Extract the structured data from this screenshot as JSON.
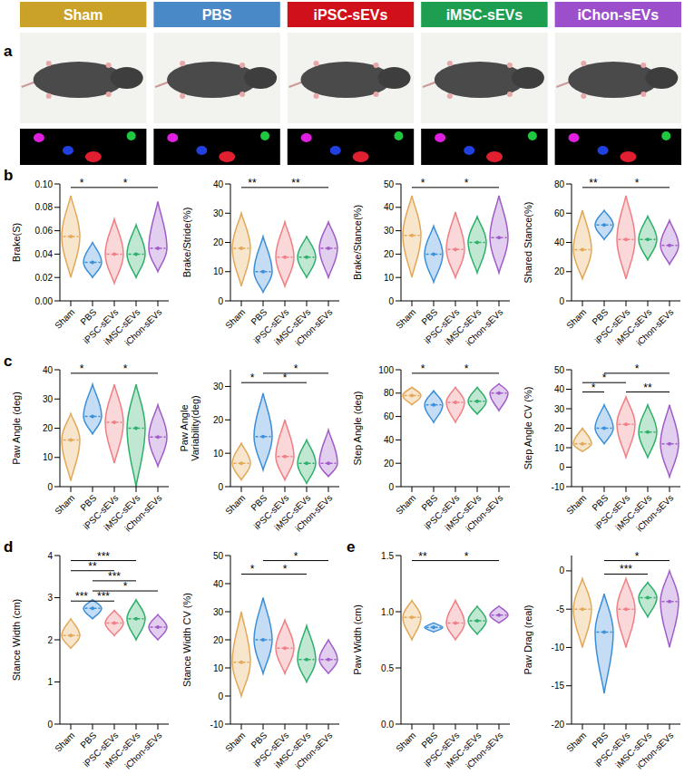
{
  "panel_labels": [
    "a",
    "b",
    "c",
    "d",
    "e"
  ],
  "panel_a": {
    "groups": [
      "Sham",
      "PBS",
      "iPSC-sEVs",
      "iMSC-sEVs",
      "iChon-sEVs"
    ],
    "colors": [
      "#C9A227",
      "#4A89C8",
      "#D0101A",
      "#1E9E50",
      "#9B4FCB"
    ]
  },
  "chart_data": [
    {
      "type": "violin",
      "y_label": "Brake(S)",
      "categories": [
        "Sham",
        "PBS",
        "iPSC-sEVs",
        "iMSC-sEVs",
        "iChon-sEVs"
      ],
      "colors": [
        "#E3A857",
        "#3B8FD9",
        "#F07F84",
        "#2EAF6B",
        "#A05CC8"
      ],
      "min": [
        0.02,
        0.02,
        0.015,
        0.02,
        0.025
      ],
      "median": [
        0.055,
        0.033,
        0.04,
        0.04,
        0.045
      ],
      "max": [
        0.09,
        0.05,
        0.07,
        0.065,
        0.085
      ],
      "ylim": [
        0,
        0.1
      ],
      "yticks": [
        {
          "value": 0,
          "label": "0.00"
        },
        0.02,
        0.04,
        0.06,
        0.08,
        {
          "value": 0.1,
          "label": "0.10"
        }
      ],
      "comparisons": [
        {
          "groups": [
            "Sham",
            "PBS"
          ],
          "label": "*"
        },
        {
          "groups": [
            "PBS",
            "iChon-sEVs"
          ],
          "label": "*"
        }
      ]
    },
    {
      "type": "violin",
      "y_label": "Brake/Stride(%)",
      "categories": [
        "Sham",
        "PBS",
        "iPSC-sEVs",
        "iMSC-sEVs",
        "iChon-sEVs"
      ],
      "colors": [
        "#E3A857",
        "#3B8FD9",
        "#F07F84",
        "#2EAF6B",
        "#A05CC8"
      ],
      "min": [
        5,
        3,
        5,
        8,
        8
      ],
      "median": [
        18,
        10,
        15,
        15,
        18
      ],
      "max": [
        30,
        22,
        27,
        22,
        27
      ],
      "ylim": [
        0,
        40
      ],
      "yticks": [
        0,
        10,
        20,
        30,
        40
      ],
      "comparisons": [
        {
          "groups": [
            "Sham",
            "PBS"
          ],
          "label": "**"
        },
        {
          "groups": [
            "PBS",
            "iChon-sEVs"
          ],
          "label": "**"
        }
      ]
    },
    {
      "type": "violin",
      "y_label": "Brake/Stance(%)",
      "categories": [
        "Sham",
        "PBS",
        "iPSC-sEVs",
        "iMSC-sEVs",
        "iChon-sEVs"
      ],
      "colors": [
        "#E3A857",
        "#3B8FD9",
        "#F07F84",
        "#2EAF6B",
        "#A05CC8"
      ],
      "min": [
        10,
        8,
        10,
        12,
        12
      ],
      "median": [
        28,
        20,
        22,
        25,
        27
      ],
      "max": [
        45,
        32,
        38,
        36,
        45
      ],
      "ylim": [
        0,
        50
      ],
      "yticks": [
        0,
        10,
        20,
        30,
        40,
        50
      ],
      "comparisons": [
        {
          "groups": [
            "Sham",
            "PBS"
          ],
          "label": "*"
        },
        {
          "groups": [
            "PBS",
            "iChon-sEVs"
          ],
          "label": "*"
        }
      ]
    },
    {
      "type": "violin",
      "y_label": "Shared Stance(%)",
      "categories": [
        "Sham",
        "PBS",
        "iPSC-sEVs",
        "iMSC-sEVs",
        "iChon-sEVs"
      ],
      "colors": [
        "#E3A857",
        "#3B8FD9",
        "#F07F84",
        "#2EAF6B",
        "#A05CC8"
      ],
      "min": [
        15,
        42,
        15,
        28,
        25
      ],
      "median": [
        35,
        52,
        42,
        42,
        38
      ],
      "max": [
        62,
        62,
        72,
        58,
        55
      ],
      "ylim": [
        0,
        80
      ],
      "yticks": [
        0,
        20,
        40,
        60,
        80
      ],
      "comparisons": [
        {
          "groups": [
            "Sham",
            "PBS"
          ],
          "label": "**"
        },
        {
          "groups": [
            "PBS",
            "iChon-sEVs"
          ],
          "label": "*"
        }
      ]
    },
    {
      "type": "violin",
      "y_label": "Paw Angle (deg)",
      "categories": [
        "Sham",
        "PBS",
        "iPSC-sEVs",
        "iMSC-sEVs",
        "iChon-sEVs"
      ],
      "colors": [
        "#E3A857",
        "#3B8FD9",
        "#F07F84",
        "#2EAF6B",
        "#A05CC8"
      ],
      "min": [
        2,
        18,
        8,
        0,
        7
      ],
      "median": [
        16,
        24,
        22,
        20,
        17
      ],
      "max": [
        25,
        35,
        35,
        35,
        28
      ],
      "ylim": [
        0,
        40
      ],
      "yticks": [
        0,
        10,
        20,
        30,
        40
      ],
      "comparisons": [
        {
          "groups": [
            "Sham",
            "PBS"
          ],
          "label": "*"
        },
        {
          "groups": [
            "PBS",
            "iChon-sEVs"
          ],
          "label": "*"
        }
      ]
    },
    {
      "type": "violin",
      "y_label": "Paw Angle Variability(deg)",
      "categories": [
        "Sham",
        "PBS",
        "iPSC-sEVs",
        "iMSC-sEVs",
        "iChon-sEVs"
      ],
      "colors": [
        "#E3A857",
        "#3B8FD9",
        "#F07F84",
        "#2EAF6B",
        "#A05CC8"
      ],
      "min": [
        2,
        5,
        2,
        1,
        3
      ],
      "median": [
        7,
        15,
        9,
        7,
        7
      ],
      "max": [
        13,
        28,
        20,
        14,
        17
      ],
      "ylim": [
        0,
        35
      ],
      "yticks": [
        0,
        10,
        20,
        30
      ],
      "comparisons": [
        {
          "groups": [
            "Sham",
            "PBS"
          ],
          "label": "*"
        },
        {
          "groups": [
            "PBS",
            "iMSC-sEVs"
          ],
          "label": "*"
        },
        {
          "groups": [
            "PBS",
            "iChon-sEVs"
          ],
          "label": "*"
        }
      ]
    },
    {
      "type": "violin",
      "y_label": "Step Angle (deg)",
      "categories": [
        "Sham",
        "PBS",
        "iPSC-sEVs",
        "iMSC-sEVs",
        "iChon-sEVs"
      ],
      "colors": [
        "#E3A857",
        "#3B8FD9",
        "#F07F84",
        "#2EAF6B",
        "#A05CC8"
      ],
      "min": [
        70,
        55,
        55,
        62,
        65
      ],
      "median": [
        78,
        70,
        72,
        73,
        80
      ],
      "max": [
        85,
        82,
        85,
        85,
        88
      ],
      "ylim": [
        0,
        100
      ],
      "yticks": [
        0,
        20,
        40,
        60,
        80,
        100
      ],
      "comparisons": [
        {
          "groups": [
            "Sham",
            "PBS"
          ],
          "label": "*"
        },
        {
          "groups": [
            "PBS",
            "iChon-sEVs"
          ],
          "label": "*"
        }
      ]
    },
    {
      "type": "violin",
      "y_label": "Step Angle CV (%)",
      "categories": [
        "Sham",
        "PBS",
        "iPSC-sEVs",
        "iMSC-sEVs",
        "iChon-sEVs"
      ],
      "colors": [
        "#E3A857",
        "#3B8FD9",
        "#F07F84",
        "#2EAF6B",
        "#A05CC8"
      ],
      "min": [
        8,
        12,
        5,
        5,
        -5
      ],
      "median": [
        12,
        20,
        22,
        18,
        12
      ],
      "max": [
        20,
        32,
        36,
        32,
        32
      ],
      "ylim": [
        -10,
        50
      ],
      "yticks": [
        -10,
        0,
        10,
        20,
        30,
        40,
        50
      ],
      "comparisons": [
        {
          "groups": [
            "Sham",
            "PBS"
          ],
          "label": "*"
        },
        {
          "groups": [
            "iPSC-sEVs",
            "iChon-sEVs"
          ],
          "label": "**"
        },
        {
          "groups": [
            "Sham",
            "iPSC-sEVs"
          ],
          "label": "*"
        },
        {
          "groups": [
            "PBS",
            "iChon-sEVs"
          ],
          "label": "*"
        }
      ]
    },
    {
      "type": "violin",
      "y_label": "Stance Width (cm)",
      "categories": [
        "Sham",
        "PBS",
        "iPSC-sEVs",
        "iMSC-sEVs",
        "iChon-sEVs"
      ],
      "colors": [
        "#E3A857",
        "#3B8FD9",
        "#F07F84",
        "#2EAF6B",
        "#A05CC8"
      ],
      "min": [
        1.8,
        2.5,
        2.1,
        2.0,
        2.0
      ],
      "median": [
        2.1,
        2.75,
        2.4,
        2.5,
        2.3
      ],
      "max": [
        2.5,
        2.95,
        2.7,
        2.95,
        2.6
      ],
      "ylim": [
        0,
        4
      ],
      "yticks": [
        0,
        1,
        2,
        3,
        4
      ],
      "comparisons": [
        {
          "groups": [
            "Sham",
            "PBS"
          ],
          "label": "***"
        },
        {
          "groups": [
            "PBS",
            "iPSC-sEVs"
          ],
          "label": "***"
        },
        {
          "groups": [
            "PBS",
            "iChon-sEVs"
          ],
          "label": "*"
        },
        {
          "groups": [
            "PBS",
            "iMSC-sEVs"
          ],
          "label": "***"
        },
        {
          "groups": [
            "Sham",
            "iPSC-sEVs"
          ],
          "label": "**"
        },
        {
          "groups": [
            "Sham",
            "iMSC-sEVs"
          ],
          "label": "***"
        }
      ]
    },
    {
      "type": "violin",
      "y_label": "Stance Width CV (%)",
      "categories": [
        "Sham",
        "PBS",
        "iPSC-sEVs",
        "iMSC-sEVs",
        "iChon-sEVs"
      ],
      "colors": [
        "#E3A857",
        "#3B8FD9",
        "#F07F84",
        "#2EAF6B",
        "#A05CC8"
      ],
      "min": [
        0,
        8,
        8,
        5,
        8
      ],
      "median": [
        12,
        20,
        17,
        13,
        13
      ],
      "max": [
        30,
        35,
        27,
        25,
        20
      ],
      "ylim": [
        -10,
        50
      ],
      "yticks": [
        -10,
        0,
        10,
        20,
        30,
        40,
        50
      ],
      "comparisons": [
        {
          "groups": [
            "Sham",
            "PBS"
          ],
          "label": "*"
        },
        {
          "groups": [
            "PBS",
            "iMSC-sEVs"
          ],
          "label": "*"
        },
        {
          "groups": [
            "PBS",
            "iChon-sEVs"
          ],
          "label": "*"
        }
      ]
    },
    {
      "type": "violin",
      "y_label": "Paw Width (cm)",
      "categories": [
        "Sham",
        "PBS",
        "iPSC-sEVs",
        "iMSC-sEVs",
        "iChon-sEVs"
      ],
      "colors": [
        "#E3A857",
        "#3B8FD9",
        "#F07F84",
        "#2EAF6B",
        "#A05CC8"
      ],
      "min": [
        0.75,
        0.82,
        0.75,
        0.8,
        0.9
      ],
      "median": [
        0.95,
        0.86,
        0.9,
        0.92,
        0.97
      ],
      "max": [
        1.1,
        0.9,
        1.1,
        1.05,
        1.05
      ],
      "ylim": [
        0,
        1.5
      ],
      "yticks": [
        {
          "value": 0,
          "label": "0.0"
        },
        0.5,
        {
          "value": 1,
          "label": "1.0"
        },
        1.5
      ],
      "comparisons": [
        {
          "groups": [
            "Sham",
            "PBS"
          ],
          "label": "**"
        },
        {
          "groups": [
            "PBS",
            "iChon-sEVs"
          ],
          "label": "*"
        }
      ]
    },
    {
      "type": "violin",
      "y_label": "Paw Drag (real)",
      "categories": [
        "Sham",
        "PBS",
        "iPSC-sEVs",
        "iMSC-sEVs",
        "iChon-sEVs"
      ],
      "colors": [
        "#E3A857",
        "#3B8FD9",
        "#F07F84",
        "#2EAF6B",
        "#A05CC8"
      ],
      "min": [
        -10,
        -16,
        -10,
        -6,
        -10
      ],
      "median": [
        -5,
        -8,
        -5,
        -3.5,
        -4
      ],
      "max": [
        -1,
        -3,
        -1,
        -1.5,
        0
      ],
      "ylim": [
        -20,
        2
      ],
      "yticks": [
        -20,
        -15,
        -10,
        -5,
        0
      ],
      "comparisons": [
        {
          "groups": [
            "PBS",
            "iMSC-sEVs"
          ],
          "label": "***"
        },
        {
          "groups": [
            "PBS",
            "iChon-sEVs"
          ],
          "label": "*"
        }
      ]
    }
  ]
}
